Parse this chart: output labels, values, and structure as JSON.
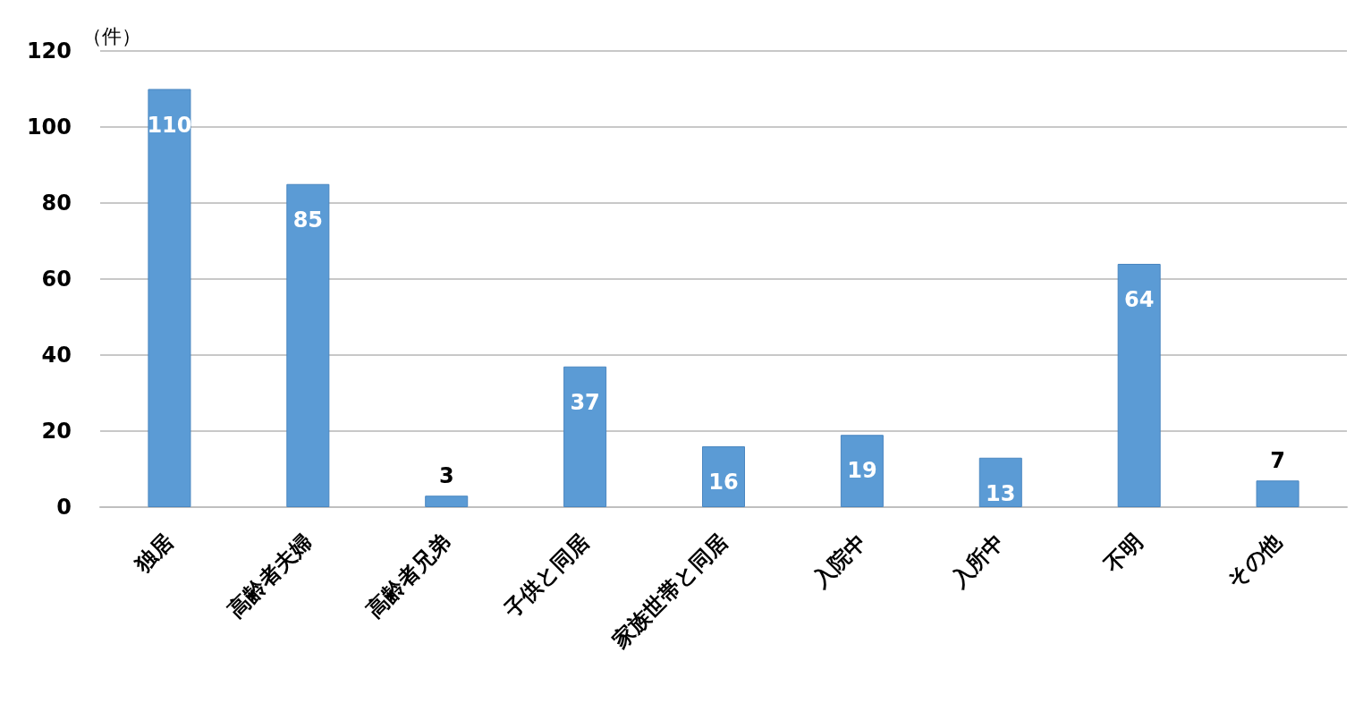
{
  "chart_data": {
    "type": "bar",
    "ylabel": "（件）",
    "categories": [
      "独居",
      "高齢者夫婦",
      "高齢者兄弟",
      "子供と同居",
      "家族世帯と同居",
      "入院中",
      "入所中",
      "不明",
      "その他"
    ],
    "values": [
      110,
      85,
      3,
      37,
      16,
      19,
      13,
      64,
      7
    ],
    "color": "#5b9bd5",
    "ylim": [
      0,
      120
    ],
    "yticks": [
      0,
      20,
      40,
      60,
      80,
      100,
      120
    ],
    "grid": "y",
    "data_labels": true,
    "legend": false
  }
}
